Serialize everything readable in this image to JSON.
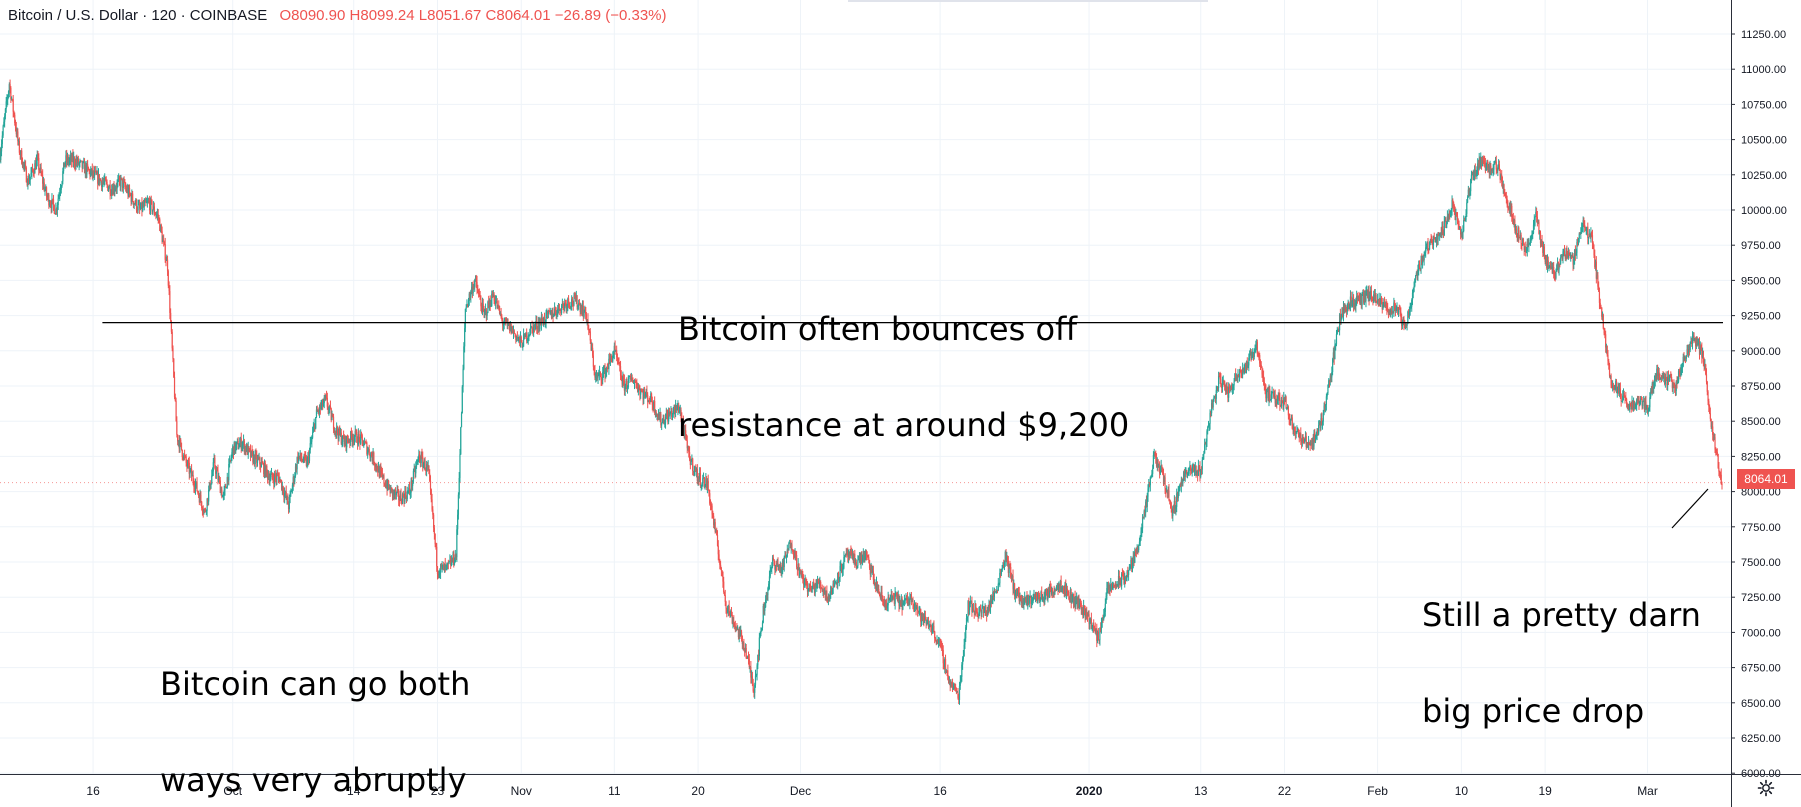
{
  "legend": {
    "symbol": "Bitcoin / U.S. Dollar",
    "interval": "120",
    "exchange": "COINBASE",
    "open": "O8090.90",
    "high": "H8099.24",
    "low": "L8051.67",
    "close": "C8064.01",
    "change": "−26.89 (−0.33%)"
  },
  "last_price_label": "8064.01",
  "annotations": {
    "resistance_line1": "Bitcoin often bounces off",
    "resistance_line2": "resistance at around $9,200",
    "abrupt_line1": "Bitcoin can go both",
    "abrupt_line2": "ways very abruptly",
    "drop_line1": "Still a pretty darn",
    "drop_line2": "big price drop"
  },
  "colors": {
    "up": "#26a69a",
    "down": "#ef5350",
    "grid": "#eef3f8",
    "axis_text": "#131722",
    "resistance_line": "#000000"
  },
  "icons": {
    "settings": "gear-icon"
  },
  "chart_data": {
    "type": "candlestick",
    "timeframe_minutes": 120,
    "y_axis_ticks": [
      11250,
      11000,
      10750,
      10500,
      10250,
      10000,
      9750,
      9500,
      9250,
      9000,
      8750,
      8500,
      8250,
      8000,
      7750,
      7500,
      7250,
      7000,
      6750,
      6500,
      6250,
      6000
    ],
    "y_axis_tick_labels": [
      "11250.00",
      "11000.00",
      "10750.00",
      "10500.00",
      "10250.00",
      "10000.00",
      "9750.00",
      "9500.00",
      "9250.00",
      "9000.00",
      "8750.00",
      "8500.00",
      "8250.00",
      "8000.00",
      "7750.00",
      "7500.00",
      "7250.00",
      "7000.00",
      "6750.00",
      "6500.00",
      "6250.00",
      "6000.00"
    ],
    "ylim": [
      6000,
      11250
    ],
    "x_axis_ticks": [
      {
        "label": "16",
        "date": "2019-09-16",
        "bold": false
      },
      {
        "label": "Oct",
        "date": "2019-10-01",
        "bold": false
      },
      {
        "label": "14",
        "date": "2019-10-14",
        "bold": false
      },
      {
        "label": "23",
        "date": "2019-10-23",
        "bold": false
      },
      {
        "label": "Nov",
        "date": "2019-11-01",
        "bold": false
      },
      {
        "label": "11",
        "date": "2019-11-11",
        "bold": false
      },
      {
        "label": "20",
        "date": "2019-11-20",
        "bold": false
      },
      {
        "label": "Dec",
        "date": "2019-12-01",
        "bold": false
      },
      {
        "label": "16",
        "date": "2019-12-16",
        "bold": false
      },
      {
        "label": "2020",
        "date": "2020-01-01",
        "bold": true
      },
      {
        "label": "13",
        "date": "2020-01-13",
        "bold": false
      },
      {
        "label": "22",
        "date": "2020-01-22",
        "bold": false
      },
      {
        "label": "Feb",
        "date": "2020-02-01",
        "bold": false
      },
      {
        "label": "10",
        "date": "2020-02-10",
        "bold": false
      },
      {
        "label": "19",
        "date": "2020-02-19",
        "bold": false
      },
      {
        "label": "Mar",
        "date": "2020-03-01",
        "bold": false
      }
    ],
    "xlim": [
      "2019-09-06",
      "2020-03-09"
    ],
    "resistance_level": 9200,
    "resistance_start": "2019-09-17",
    "last_price": 8064.01,
    "price_path": [
      [
        "2019-09-06",
        10400
      ],
      [
        "2019-09-07",
        10900
      ],
      [
        "2019-09-08",
        10450
      ],
      [
        "2019-09-09",
        10200
      ],
      [
        "2019-09-10",
        10350
      ],
      [
        "2019-09-11",
        10100
      ],
      [
        "2019-09-12",
        10000
      ],
      [
        "2019-09-13",
        10350
      ],
      [
        "2019-09-14",
        10350
      ],
      [
        "2019-09-15",
        10300
      ],
      [
        "2019-09-16",
        10250
      ],
      [
        "2019-09-17",
        10200
      ],
      [
        "2019-09-18",
        10150
      ],
      [
        "2019-09-19",
        10200
      ],
      [
        "2019-09-20",
        10100
      ],
      [
        "2019-09-21",
        10000
      ],
      [
        "2019-09-22",
        10050
      ],
      [
        "2019-09-23",
        9950
      ],
      [
        "2019-09-24",
        9600
      ],
      [
        "2019-09-25",
        8400
      ],
      [
        "2019-09-26",
        8200
      ],
      [
        "2019-09-27",
        8050
      ],
      [
        "2019-09-28",
        7850
      ],
      [
        "2019-09-29",
        8200
      ],
      [
        "2019-09-30",
        7950
      ],
      [
        "2019-10-01",
        8300
      ],
      [
        "2019-10-02",
        8350
      ],
      [
        "2019-10-03",
        8250
      ],
      [
        "2019-10-04",
        8200
      ],
      [
        "2019-10-05",
        8100
      ],
      [
        "2019-10-06",
        8100
      ],
      [
        "2019-10-07",
        7900
      ],
      [
        "2019-10-08",
        8250
      ],
      [
        "2019-10-09",
        8200
      ],
      [
        "2019-10-10",
        8550
      ],
      [
        "2019-10-11",
        8650
      ],
      [
        "2019-10-12",
        8450
      ],
      [
        "2019-10-13",
        8350
      ],
      [
        "2019-10-14",
        8400
      ],
      [
        "2019-10-15",
        8350
      ],
      [
        "2019-10-16",
        8250
      ],
      [
        "2019-10-17",
        8100
      ],
      [
        "2019-10-18",
        8000
      ],
      [
        "2019-10-19",
        7950
      ],
      [
        "2019-10-20",
        8000
      ],
      [
        "2019-10-21",
        8250
      ],
      [
        "2019-10-22",
        8150
      ],
      [
        "2019-10-23",
        7450
      ],
      [
        "2019-10-24",
        7450
      ],
      [
        "2019-10-25",
        7550
      ],
      [
        "2019-10-26",
        9300
      ],
      [
        "2019-10-27",
        9500
      ],
      [
        "2019-10-28",
        9250
      ],
      [
        "2019-10-29",
        9400
      ],
      [
        "2019-10-30",
        9200
      ],
      [
        "2019-10-31",
        9150
      ],
      [
        "2019-11-01",
        9050
      ],
      [
        "2019-11-02",
        9150
      ],
      [
        "2019-11-03",
        9200
      ],
      [
        "2019-11-04",
        9250
      ],
      [
        "2019-11-05",
        9300
      ],
      [
        "2019-11-06",
        9350
      ],
      [
        "2019-11-07",
        9350
      ],
      [
        "2019-11-08",
        9250
      ],
      [
        "2019-11-09",
        8800
      ],
      [
        "2019-11-10",
        8850
      ],
      [
        "2019-11-11",
        9000
      ],
      [
        "2019-11-12",
        8750
      ],
      [
        "2019-11-13",
        8800
      ],
      [
        "2019-11-14",
        8700
      ],
      [
        "2019-11-15",
        8650
      ],
      [
        "2019-11-16",
        8500
      ],
      [
        "2019-11-17",
        8550
      ],
      [
        "2019-11-18",
        8600
      ],
      [
        "2019-11-19",
        8250
      ],
      [
        "2019-11-20",
        8100
      ],
      [
        "2019-11-21",
        8050
      ],
      [
        "2019-11-22",
        7650
      ],
      [
        "2019-11-23",
        7200
      ],
      [
        "2019-11-24",
        7050
      ],
      [
        "2019-11-25",
        6900
      ],
      [
        "2019-11-26",
        6600
      ],
      [
        "2019-11-27",
        7150
      ],
      [
        "2019-11-28",
        7500
      ],
      [
        "2019-11-29",
        7450
      ],
      [
        "2019-11-30",
        7650
      ],
      [
        "2019-12-01",
        7400
      ],
      [
        "2019-12-02",
        7300
      ],
      [
        "2019-12-03",
        7350
      ],
      [
        "2019-12-04",
        7250
      ],
      [
        "2019-12-05",
        7400
      ],
      [
        "2019-12-06",
        7550
      ],
      [
        "2019-12-07",
        7500
      ],
      [
        "2019-12-08",
        7550
      ],
      [
        "2019-12-09",
        7350
      ],
      [
        "2019-12-10",
        7200
      ],
      [
        "2019-12-11",
        7250
      ],
      [
        "2019-12-12",
        7200
      ],
      [
        "2019-12-13",
        7250
      ],
      [
        "2019-12-14",
        7100
      ],
      [
        "2019-12-15",
        7050
      ],
      [
        "2019-12-16",
        6900
      ],
      [
        "2019-12-17",
        6650
      ],
      [
        "2019-12-18",
        6550
      ],
      [
        "2019-12-19",
        7200
      ],
      [
        "2019-12-20",
        7150
      ],
      [
        "2019-12-21",
        7150
      ],
      [
        "2019-12-22",
        7300
      ],
      [
        "2019-12-23",
        7550
      ],
      [
        "2019-12-24",
        7300
      ],
      [
        "2019-12-25",
        7200
      ],
      [
        "2019-12-26",
        7250
      ],
      [
        "2019-12-27",
        7250
      ],
      [
        "2019-12-28",
        7300
      ],
      [
        "2019-12-29",
        7350
      ],
      [
        "2019-12-30",
        7250
      ],
      [
        "2019-12-31",
        7200
      ],
      [
        "2020-01-01",
        7100
      ],
      [
        "2020-01-02",
        6950
      ],
      [
        "2020-01-03",
        7300
      ],
      [
        "2020-01-04",
        7350
      ],
      [
        "2020-01-05",
        7400
      ],
      [
        "2020-01-06",
        7550
      ],
      [
        "2020-01-07",
        7850
      ],
      [
        "2020-01-08",
        8250
      ],
      [
        "2020-01-09",
        8100
      ],
      [
        "2020-01-10",
        7850
      ],
      [
        "2020-01-11",
        8100
      ],
      [
        "2020-01-12",
        8150
      ],
      [
        "2020-01-13",
        8150
      ],
      [
        "2020-01-14",
        8550
      ],
      [
        "2020-01-15",
        8800
      ],
      [
        "2020-01-16",
        8700
      ],
      [
        "2020-01-17",
        8850
      ],
      [
        "2020-01-18",
        8900
      ],
      [
        "2020-01-19",
        9050
      ],
      [
        "2020-01-20",
        8700
      ],
      [
        "2020-01-21",
        8650
      ],
      [
        "2020-01-22",
        8650
      ],
      [
        "2020-01-23",
        8450
      ],
      [
        "2020-01-24",
        8350
      ],
      [
        "2020-01-25",
        8350
      ],
      [
        "2020-01-26",
        8500
      ],
      [
        "2020-01-27",
        8850
      ],
      [
        "2020-01-28",
        9250
      ],
      [
        "2020-01-29",
        9350
      ],
      [
        "2020-01-30",
        9350
      ],
      [
        "2020-01-31",
        9400
      ],
      [
        "2020-02-01",
        9350
      ],
      [
        "2020-02-02",
        9300
      ],
      [
        "2020-02-03",
        9300
      ],
      [
        "2020-02-04",
        9150
      ],
      [
        "2020-02-05",
        9500
      ],
      [
        "2020-02-06",
        9700
      ],
      [
        "2020-02-07",
        9800
      ],
      [
        "2020-02-08",
        9850
      ],
      [
        "2020-02-09",
        10050
      ],
      [
        "2020-02-10",
        9800
      ],
      [
        "2020-02-11",
        10200
      ],
      [
        "2020-02-12",
        10350
      ],
      [
        "2020-02-13",
        10300
      ],
      [
        "2020-02-14",
        10300
      ],
      [
        "2020-02-15",
        10050
      ],
      [
        "2020-02-16",
        9850
      ],
      [
        "2020-02-17",
        9700
      ],
      [
        "2020-02-18",
        9950
      ],
      [
        "2020-02-19",
        9650
      ],
      [
        "2020-02-20",
        9550
      ],
      [
        "2020-02-21",
        9700
      ],
      [
        "2020-02-22",
        9650
      ],
      [
        "2020-02-23",
        9900
      ],
      [
        "2020-02-24",
        9800
      ],
      [
        "2020-02-25",
        9300
      ],
      [
        "2020-02-26",
        8800
      ],
      [
        "2020-02-27",
        8700
      ],
      [
        "2020-02-28",
        8600
      ],
      [
        "2020-02-29",
        8650
      ],
      [
        "2020-03-01",
        8600
      ],
      [
        "2020-03-02",
        8850
      ],
      [
        "2020-03-03",
        8800
      ],
      [
        "2020-03-04",
        8750
      ],
      [
        "2020-03-05",
        8950
      ],
      [
        "2020-03-06",
        9100
      ],
      [
        "2020-03-07",
        8950
      ],
      [
        "2020-03-08",
        8400
      ],
      [
        "2020-03-09",
        8064.01
      ]
    ]
  }
}
